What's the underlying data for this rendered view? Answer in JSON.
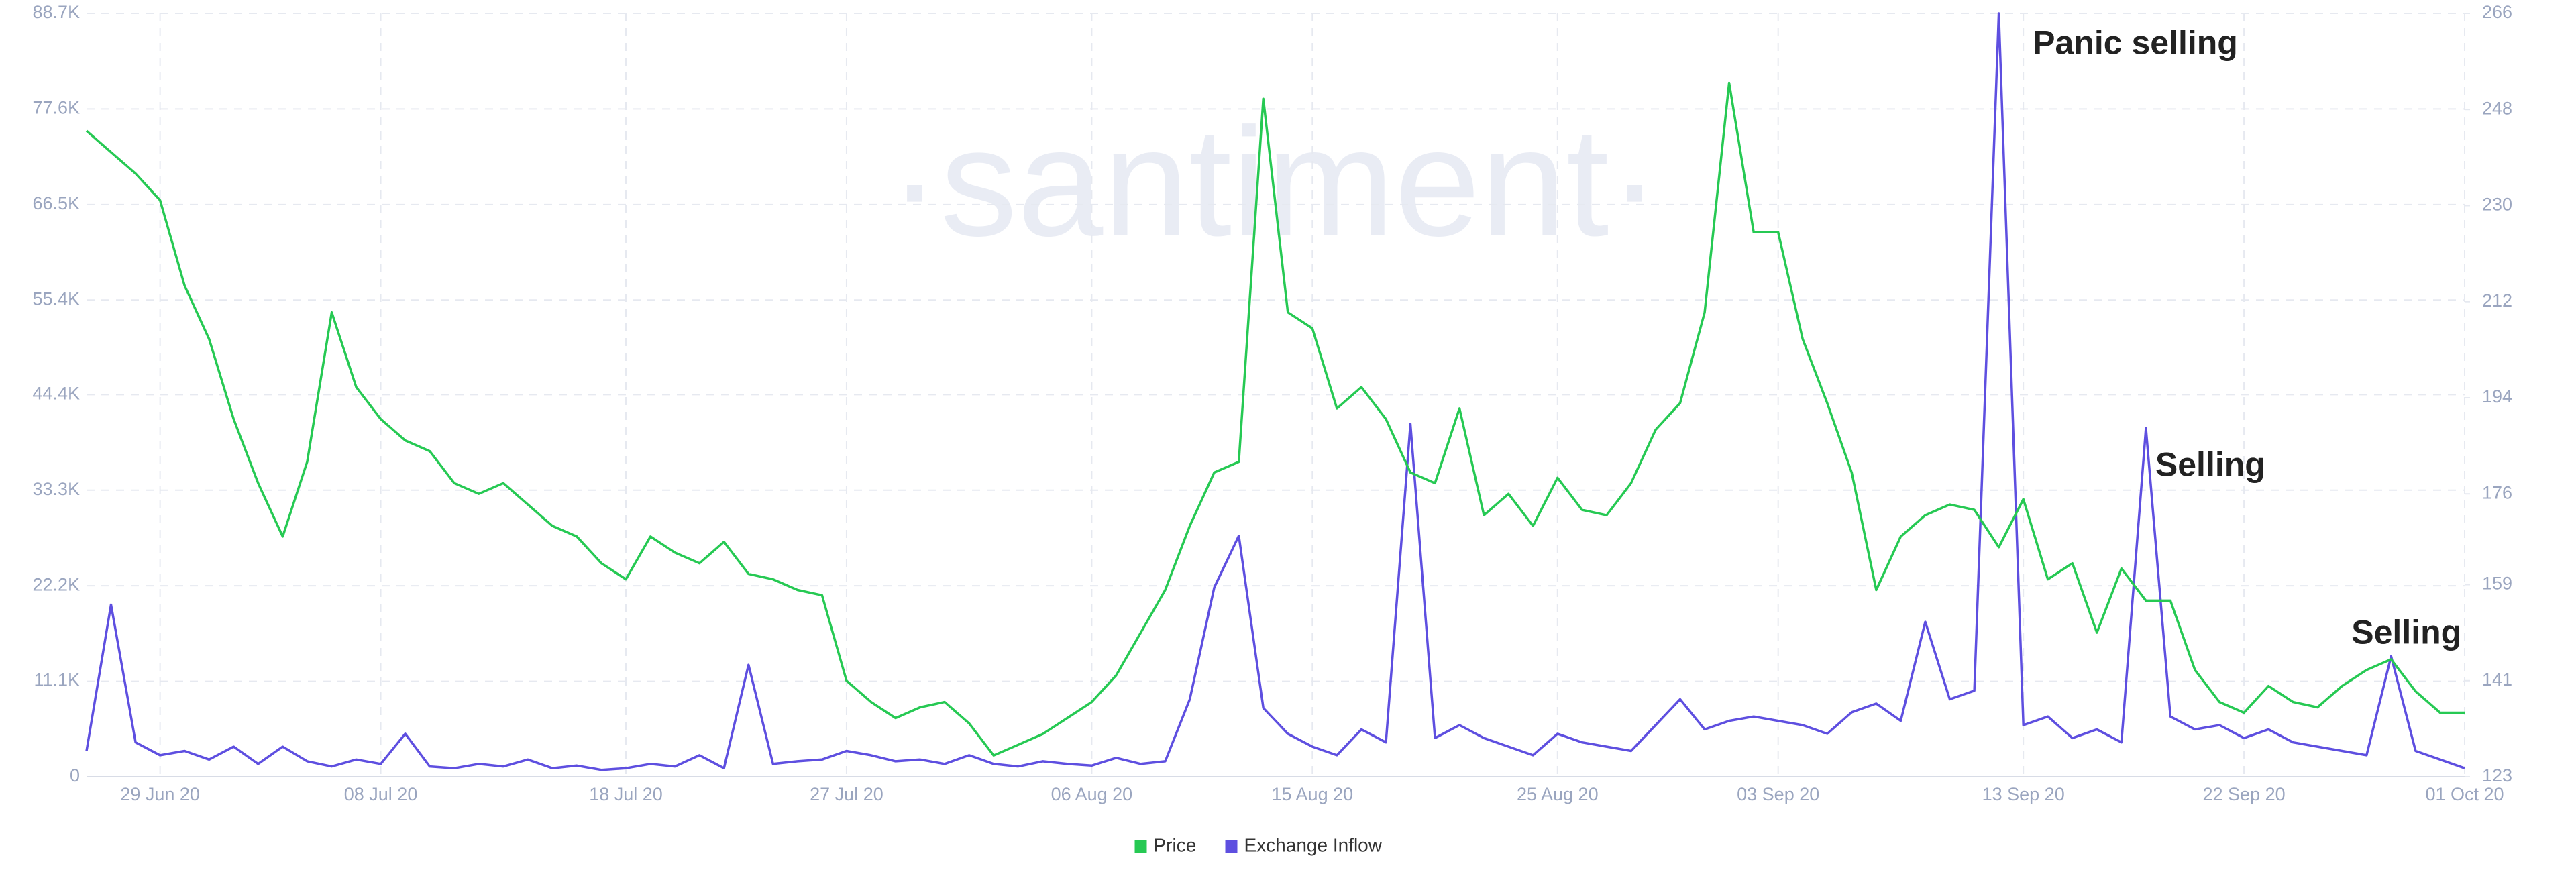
{
  "chart_data": {
    "type": "line",
    "watermark": "·santiment·",
    "x": [
      "26 Jun 20",
      "27 Jun 20",
      "28 Jun 20",
      "29 Jun 20",
      "30 Jun 20",
      "01 Jul 20",
      "02 Jul 20",
      "03 Jul 20",
      "04 Jul 20",
      "05 Jul 20",
      "06 Jul 20",
      "07 Jul 20",
      "08 Jul 20",
      "09 Jul 20",
      "10 Jul 20",
      "11 Jul 20",
      "12 Jul 20",
      "13 Jul 20",
      "14 Jul 20",
      "15 Jul 20",
      "16 Jul 20",
      "17 Jul 20",
      "18 Jul 20",
      "19 Jul 20",
      "20 Jul 20",
      "21 Jul 20",
      "22 Jul 20",
      "23 Jul 20",
      "24 Jul 20",
      "25 Jul 20",
      "26 Jul 20",
      "27 Jul 20",
      "28 Jul 20",
      "29 Jul 20",
      "30 Jul 20",
      "31 Jul 20",
      "01 Aug 20",
      "02 Aug 20",
      "03 Aug 20",
      "04 Aug 20",
      "05 Aug 20",
      "06 Aug 20",
      "07 Aug 20",
      "08 Aug 20",
      "09 Aug 20",
      "10 Aug 20",
      "11 Aug 20",
      "12 Aug 20",
      "13 Aug 20",
      "14 Aug 20",
      "15 Aug 20",
      "16 Aug 20",
      "17 Aug 20",
      "18 Aug 20",
      "19 Aug 20",
      "20 Aug 20",
      "21 Aug 20",
      "22 Aug 20",
      "23 Aug 20",
      "24 Aug 20",
      "25 Aug 20",
      "26 Aug 20",
      "27 Aug 20",
      "28 Aug 20",
      "29 Aug 20",
      "30 Aug 20",
      "31 Aug 20",
      "01 Sep 20",
      "02 Sep 20",
      "03 Sep 20",
      "04 Sep 20",
      "05 Sep 20",
      "06 Sep 20",
      "07 Sep 20",
      "08 Sep 20",
      "09 Sep 20",
      "10 Sep 20",
      "11 Sep 20",
      "12 Sep 20",
      "13 Sep 20",
      "14 Sep 20",
      "15 Sep 20",
      "16 Sep 20",
      "17 Sep 20",
      "18 Sep 20",
      "19 Sep 20",
      "20 Sep 20",
      "21 Sep 20",
      "22 Sep 20",
      "23 Sep 20",
      "24 Sep 20",
      "25 Sep 20",
      "26 Sep 20",
      "27 Sep 20",
      "28 Sep 20",
      "29 Sep 20",
      "30 Sep 20",
      "01 Oct 20"
    ],
    "xticks": [
      "29 Jun 20",
      "08 Jul 20",
      "18 Jul 20",
      "27 Jul 20",
      "06 Aug 20",
      "15 Aug 20",
      "25 Aug 20",
      "03 Sep 20",
      "13 Sep 20",
      "22 Sep 20",
      "01 Oct 20"
    ],
    "series": [
      {
        "name": "Price",
        "color": "#26c953",
        "axis": "y2",
        "values": [
          244,
          240,
          236,
          231,
          215,
          205,
          190,
          178,
          168,
          182,
          210,
          196,
          190,
          186,
          184,
          178,
          176,
          178,
          174,
          170,
          168,
          163,
          160,
          168,
          165,
          163,
          167,
          161,
          160,
          158,
          157,
          141,
          137,
          134,
          136,
          137,
          133,
          127,
          129,
          131,
          134,
          137,
          142,
          150,
          158,
          170,
          180,
          182,
          250,
          210,
          207,
          192,
          196,
          190,
          180,
          178,
          192,
          172,
          176,
          170,
          179,
          173,
          172,
          178,
          188,
          193,
          210,
          253,
          225,
          225,
          205,
          193,
          180,
          158,
          168,
          172,
          174,
          173,
          166,
          175,
          160,
          163,
          150,
          162,
          156,
          156,
          143,
          137,
          135,
          140,
          137,
          136,
          140,
          143,
          145,
          139,
          135,
          135
        ]
      },
      {
        "name": "Exchange Inflow",
        "color": "#5e4fe0",
        "values": [
          3000,
          20000,
          4000,
          2500,
          3000,
          2000,
          3500,
          1500,
          3500,
          1800,
          1200,
          2000,
          1500,
          5000,
          1200,
          1000,
          1500,
          1200,
          2000,
          1000,
          1300,
          800,
          1000,
          1500,
          1200,
          2500,
          1000,
          13000,
          1500,
          1800,
          2000,
          3000,
          2500,
          1800,
          2000,
          1500,
          2500,
          1500,
          1200,
          1800,
          1500,
          1300,
          2200,
          1500,
          1800,
          9000,
          22000,
          28000,
          8000,
          5000,
          3500,
          2500,
          5500,
          4000,
          41000,
          4500,
          6000,
          4500,
          3500,
          2500,
          5000,
          4000,
          3500,
          3000,
          6000,
          9000,
          5500,
          6500,
          7000,
          6500,
          6000,
          5000,
          7500,
          8500,
          6500,
          18000,
          9000,
          10000,
          88700,
          6000,
          7000,
          4500,
          5500,
          4000,
          40500,
          7000,
          5500,
          6000,
          4500,
          5500,
          4000,
          3500,
          3000,
          2500,
          14000,
          3000,
          2000,
          1000
        ]
      }
    ],
    "ylim": [
      0,
      88700
    ],
    "yticks": [
      0,
      {
        "value": 11100,
        "label": "11.1K"
      },
      {
        "value": 22200,
        "label": "22.2K"
      },
      {
        "value": 33300,
        "label": "33.3K"
      },
      {
        "value": 44400,
        "label": "44.4K"
      },
      {
        "value": 55400,
        "label": "55.4K"
      },
      {
        "value": 66500,
        "label": "66.5K"
      },
      {
        "value": 77600,
        "label": "77.6K"
      },
      {
        "value": 88700,
        "label": "88.7K"
      }
    ],
    "y2lim": [
      123,
      266
    ],
    "y2ticks": [
      123,
      141,
      159,
      176,
      194,
      212,
      230,
      248,
      266
    ],
    "grid": true,
    "legend": "bottom",
    "annotations": [
      {
        "text": "Panic selling",
        "x": "13 Sep 20",
        "y": 85000
      },
      {
        "text": "Selling",
        "x": "18 Sep 20",
        "y": 36000
      },
      {
        "text": "Selling",
        "x": "26 Sep 20",
        "y": 16500
      }
    ]
  }
}
